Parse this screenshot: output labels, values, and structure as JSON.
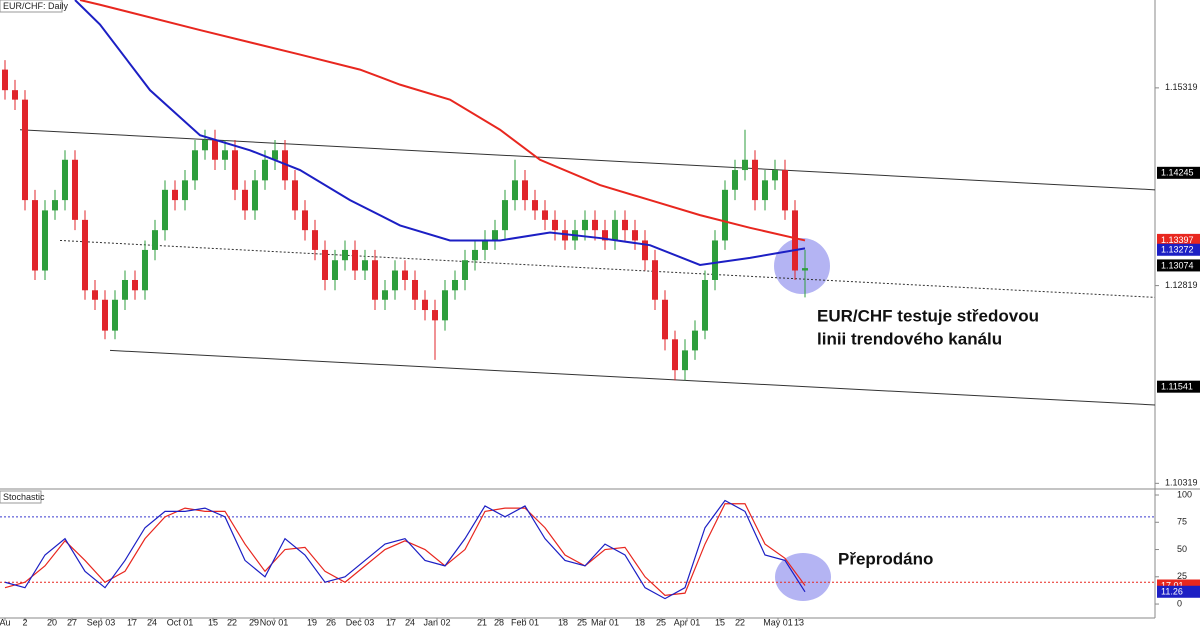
{
  "chart_data": [
    {
      "type": "candlestick",
      "title": "EUR/CHF: Daily",
      "xlim": [
        0,
        231
      ],
      "ylim": [
        1.1026,
        1.1643
      ],
      "yticks": [
        1.15319,
        1.12819,
        1.10319
      ],
      "up_color": "#2e9e3c",
      "down_color": "#e0252b",
      "x": [
        1,
        3,
        5,
        7,
        9,
        11,
        13,
        15,
        17,
        19,
        21,
        23,
        25,
        27,
        29,
        31,
        33,
        35,
        37,
        39,
        41,
        43,
        45,
        47,
        49,
        51,
        53,
        55,
        57,
        59,
        61,
        63,
        65,
        67,
        69,
        71,
        73,
        75,
        77,
        79,
        81,
        83,
        85,
        87,
        89,
        91,
        93,
        95,
        97,
        99,
        101,
        103,
        105,
        107,
        109,
        111,
        113,
        115,
        117,
        119,
        121,
        123,
        125,
        127,
        129,
        131,
        133,
        135,
        137,
        139,
        141,
        143,
        145,
        147,
        149,
        151,
        153,
        155,
        157,
        159,
        161
      ],
      "open": [
        1.1555,
        1.1529,
        1.1517,
        1.139,
        1.1301,
        1.1377,
        1.139,
        1.1441,
        1.1365,
        1.1276,
        1.1264,
        1.1225,
        1.1264,
        1.1289,
        1.1276,
        1.1327,
        1.1352,
        1.1403,
        1.139,
        1.1415,
        1.1453,
        1.1466,
        1.1441,
        1.1453,
        1.1403,
        1.1377,
        1.1415,
        1.1441,
        1.1453,
        1.1415,
        1.1377,
        1.1352,
        1.1327,
        1.1289,
        1.1314,
        1.1327,
        1.1301,
        1.1314,
        1.1264,
        1.1276,
        1.1301,
        1.1289,
        1.1264,
        1.1251,
        1.1238,
        1.1276,
        1.1289,
        1.1314,
        1.1327,
        1.1339,
        1.1352,
        1.139,
        1.1415,
        1.139,
        1.1377,
        1.1365,
        1.1352,
        1.1339,
        1.1352,
        1.1365,
        1.1352,
        1.1339,
        1.1365,
        1.1352,
        1.1339,
        1.1314,
        1.1264,
        1.1214,
        1.1175,
        1.12,
        1.1225,
        1.1289,
        1.1339,
        1.1403,
        1.1428,
        1.1441,
        1.139,
        1.1415,
        1.1428,
        1.1377,
        1.1301
      ],
      "high": [
        1.1567,
        1.1542,
        1.1529,
        1.1403,
        1.139,
        1.1403,
        1.1453,
        1.1453,
        1.1377,
        1.1289,
        1.1276,
        1.1276,
        1.1301,
        1.1301,
        1.1339,
        1.1365,
        1.1415,
        1.1415,
        1.1428,
        1.1466,
        1.1479,
        1.1479,
        1.1466,
        1.1466,
        1.1415,
        1.1428,
        1.1453,
        1.1466,
        1.1466,
        1.1428,
        1.139,
        1.1365,
        1.1339,
        1.1327,
        1.1339,
        1.1339,
        1.1327,
        1.1327,
        1.1289,
        1.1314,
        1.1314,
        1.1301,
        1.1276,
        1.1264,
        1.1289,
        1.1301,
        1.1327,
        1.1339,
        1.1352,
        1.1365,
        1.1403,
        1.1441,
        1.1428,
        1.1403,
        1.139,
        1.1377,
        1.1365,
        1.1365,
        1.1377,
        1.1377,
        1.1365,
        1.1377,
        1.1377,
        1.1365,
        1.1352,
        1.1327,
        1.1276,
        1.1225,
        1.1214,
        1.1238,
        1.1301,
        1.1352,
        1.1415,
        1.1441,
        1.1479,
        1.1453,
        1.1428,
        1.1441,
        1.1441,
        1.139,
        1.1327
      ],
      "low": [
        1.1517,
        1.1504,
        1.1377,
        1.1289,
        1.1289,
        1.1365,
        1.1377,
        1.1352,
        1.1264,
        1.1251,
        1.1214,
        1.1214,
        1.1251,
        1.1264,
        1.1264,
        1.1314,
        1.1339,
        1.1377,
        1.1377,
        1.1403,
        1.1441,
        1.1428,
        1.1428,
        1.139,
        1.1365,
        1.1365,
        1.1403,
        1.1428,
        1.1403,
        1.1365,
        1.1339,
        1.1314,
        1.1276,
        1.1276,
        1.1301,
        1.1289,
        1.1289,
        1.1251,
        1.1251,
        1.1264,
        1.1276,
        1.1251,
        1.1238,
        1.1188,
        1.1225,
        1.1264,
        1.1276,
        1.1301,
        1.1314,
        1.1327,
        1.1339,
        1.1377,
        1.1377,
        1.1365,
        1.1352,
        1.1339,
        1.1327,
        1.1327,
        1.1339,
        1.1339,
        1.1327,
        1.1327,
        1.1339,
        1.1327,
        1.1301,
        1.1251,
        1.12,
        1.1162,
        1.1162,
        1.1188,
        1.1214,
        1.1276,
        1.1327,
        1.139,
        1.1415,
        1.1377,
        1.1377,
        1.1403,
        1.1365,
        1.1289,
        1.1267
      ],
      "close": [
        1.1529,
        1.1517,
        1.139,
        1.1301,
        1.1377,
        1.139,
        1.1441,
        1.1365,
        1.1276,
        1.1264,
        1.1225,
        1.1264,
        1.1289,
        1.1276,
        1.1327,
        1.1352,
        1.1403,
        1.139,
        1.1415,
        1.1453,
        1.1466,
        1.1441,
        1.1453,
        1.1403,
        1.1377,
        1.1415,
        1.1441,
        1.1453,
        1.1415,
        1.1377,
        1.1352,
        1.1327,
        1.1289,
        1.1314,
        1.1327,
        1.1301,
        1.1314,
        1.1264,
        1.1276,
        1.1301,
        1.1289,
        1.1264,
        1.1251,
        1.1238,
        1.1276,
        1.1289,
        1.1314,
        1.1327,
        1.1339,
        1.1352,
        1.139,
        1.1415,
        1.139,
        1.1377,
        1.1365,
        1.1352,
        1.1339,
        1.1352,
        1.1365,
        1.1352,
        1.1339,
        1.1365,
        1.1352,
        1.1339,
        1.1314,
        1.1264,
        1.1214,
        1.1175,
        1.12,
        1.1225,
        1.1289,
        1.1339,
        1.1403,
        1.1428,
        1.1441,
        1.139,
        1.1415,
        1.1428,
        1.1377,
        1.1301,
        1.1304
      ],
      "lines": [
        {
          "color": "#e8271f",
          "x": [
            16,
            20,
            40,
            60,
            72,
            80,
            90,
            100,
            108,
            120,
            130,
            140,
            150,
            161
          ],
          "values": [
            1.1643,
            1.1637,
            1.1605,
            1.1574,
            1.1555,
            1.1536,
            1.1517,
            1.1479,
            1.1441,
            1.1409,
            1.139,
            1.1371,
            1.1355,
            1.1339
          ]
        },
        {
          "color": "#1c1fc4",
          "x": [
            15,
            20,
            30,
            40,
            50,
            60,
            70,
            80,
            90,
            100,
            110,
            120,
            130,
            140,
            150,
            161
          ],
          "values": [
            1.1643,
            1.1612,
            1.1529,
            1.1472,
            1.1453,
            1.1428,
            1.139,
            1.1358,
            1.1339,
            1.1339,
            1.1349,
            1.1342,
            1.1333,
            1.1308,
            1.1317,
            1.1329
          ]
        }
      ],
      "trendlines": [
        {
          "style": "solid",
          "x": [
            4,
            231
          ],
          "values": [
            1.1479,
            1.1403
          ]
        },
        {
          "style": "solid",
          "x": [
            22,
            231
          ],
          "values": [
            1.12,
            1.1131
          ]
        },
        {
          "style": "dotted",
          "x": [
            12,
            231
          ],
          "values": [
            1.1339,
            1.1267
          ]
        }
      ],
      "price_labels": [
        {
          "value": 1.14245,
          "color": "#000000"
        },
        {
          "value": 1.13397,
          "color": "#e8271f"
        },
        {
          "value": 1.13272,
          "color": "#1c1fc4"
        },
        {
          "value": 1.13074,
          "color": "#000000"
        },
        {
          "value": 1.11541,
          "color": "#000000"
        }
      ],
      "annotation": [
        "EUR/CHF testuje středovou",
        "linii trendového kanálu"
      ]
    },
    {
      "type": "line",
      "title": "Stochastic",
      "xlim": [
        0,
        231
      ],
      "ylim": [
        -12.8,
        104.6
      ],
      "yticks": [
        0,
        25,
        50,
        75,
        100
      ],
      "levels": [
        {
          "value": 80,
          "color": "#3b3bd0"
        },
        {
          "value": 20,
          "color": "#e8271f"
        }
      ],
      "x": [
        1,
        5,
        9,
        13,
        17,
        21,
        25,
        29,
        33,
        37,
        41,
        45,
        49,
        53,
        57,
        61,
        65,
        69,
        73,
        77,
        81,
        85,
        89,
        93,
        97,
        101,
        105,
        109,
        113,
        117,
        121,
        125,
        129,
        133,
        137,
        141,
        145,
        149,
        153,
        157,
        161
      ],
      "series": [
        {
          "color": "#e8271f",
          "values": [
            15,
            20,
            35,
            58,
            40,
            20,
            30,
            60,
            80,
            88,
            85,
            85,
            55,
            30,
            50,
            52,
            30,
            20,
            35,
            50,
            58,
            50,
            35,
            50,
            85,
            88,
            88,
            70,
            45,
            35,
            50,
            52,
            25,
            8,
            10,
            55,
            92,
            92,
            55,
            42,
            17.01
          ]
        },
        {
          "color": "#1c1fc4",
          "values": [
            20,
            15,
            45,
            60,
            30,
            15,
            40,
            70,
            85,
            85,
            88,
            80,
            40,
            25,
            60,
            45,
            20,
            25,
            40,
            55,
            60,
            40,
            35,
            60,
            90,
            80,
            90,
            60,
            40,
            35,
            55,
            45,
            15,
            5,
            15,
            70,
            95,
            85,
            45,
            40,
            11.26
          ]
        }
      ],
      "annotation": "Přeprodáno",
      "xticks": [
        {
          "value": 1,
          "label": "Au"
        },
        {
          "value": 5,
          "label": "2"
        },
        {
          "value": 10.4,
          "label": "20"
        },
        {
          "value": 14.4,
          "label": "27"
        },
        {
          "value": 20.2,
          "label": "Sep 03"
        },
        {
          "value": 26.4,
          "label": "17"
        },
        {
          "value": 30.4,
          "label": "24"
        },
        {
          "value": 36,
          "label": "Oct 01"
        },
        {
          "value": 42.6,
          "label": "15"
        },
        {
          "value": 46.4,
          "label": "22"
        },
        {
          "value": 50.8,
          "label": "29"
        },
        {
          "value": 54.8,
          "label": "Nov 01"
        },
        {
          "value": 62.4,
          "label": "19"
        },
        {
          "value": 66.2,
          "label": "26"
        },
        {
          "value": 72,
          "label": "Dec 03"
        },
        {
          "value": 78.2,
          "label": "17"
        },
        {
          "value": 82,
          "label": "24"
        },
        {
          "value": 87.4,
          "label": "Jan 02"
        },
        {
          "value": 96.4,
          "label": "21"
        },
        {
          "value": 99.8,
          "label": "28"
        },
        {
          "value": 105,
          "label": "Feb 01"
        },
        {
          "value": 112.6,
          "label": "18"
        },
        {
          "value": 116.4,
          "label": "25"
        },
        {
          "value": 121,
          "label": "Mar 01"
        },
        {
          "value": 128,
          "label": "18"
        },
        {
          "value": 132.2,
          "label": "25"
        },
        {
          "value": 137.4,
          "label": "Apr 01"
        },
        {
          "value": 144,
          "label": "15"
        },
        {
          "value": 148,
          "label": "22"
        },
        {
          "value": 155.6,
          "label": "May 01"
        },
        {
          "value": 159.8,
          "label": "13"
        }
      ]
    }
  ]
}
